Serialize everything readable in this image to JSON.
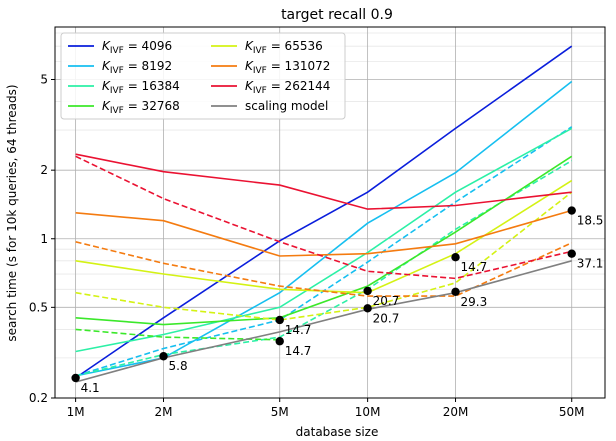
{
  "chart_data": {
    "type": "line",
    "title": "target recall 0.9",
    "xlabel": "database size",
    "ylabel": "search time (s for 10k queries, 64 threads)",
    "xscale": "log",
    "yscale": "log",
    "xlim": [
      850000,
      65000000
    ],
    "ylim": [
      0.2,
      8.5
    ],
    "grid": true,
    "legend_position": "top-left",
    "x_ticks": [
      {
        "value": 1000000,
        "label": "1M"
      },
      {
        "value": 2000000,
        "label": "2M"
      },
      {
        "value": 5000000,
        "label": "5M"
      },
      {
        "value": 10000000,
        "label": "10M"
      },
      {
        "value": 20000000,
        "label": "20M"
      },
      {
        "value": 50000000,
        "label": "50M"
      }
    ],
    "y_ticks": [
      {
        "value": 0.2,
        "label": "0.2"
      },
      {
        "value": 0.5,
        "label": "0.5"
      },
      {
        "value": 1,
        "label": "1"
      },
      {
        "value": 2,
        "label": "2"
      },
      {
        "value": 5,
        "label": "5"
      }
    ],
    "series": [
      {
        "name": "K_IVF = 4096",
        "sub": "IVF",
        "value": "= 4096",
        "color": "#0a1edc",
        "solid": [
          [
            1000000,
            0.245
          ],
          [
            2000000,
            0.45
          ],
          [
            5000000,
            0.98
          ],
          [
            10000000,
            1.6
          ],
          [
            20000000,
            3.05
          ],
          [
            50000000,
            7.0
          ]
        ],
        "dashed": []
      },
      {
        "name": "K_IVF = 8192",
        "sub": "IVF",
        "value": "= 8192",
        "color": "#16bff0",
        "solid": [
          [
            1000000,
            0.25
          ],
          [
            2000000,
            0.3
          ],
          [
            5000000,
            0.58
          ],
          [
            10000000,
            1.17
          ],
          [
            20000000,
            1.95
          ],
          [
            50000000,
            4.9
          ]
        ],
        "dashed": [
          [
            1000000,
            0.25
          ],
          [
            2000000,
            0.33
          ],
          [
            5000000,
            0.44
          ],
          [
            10000000,
            0.79
          ],
          [
            20000000,
            1.45
          ],
          [
            50000000,
            3.1
          ]
        ]
      },
      {
        "name": "K_IVF = 16384",
        "sub": "IVF",
        "value": "= 16384",
        "color": "#2cf0a6",
        "solid": [
          [
            1000000,
            0.32
          ],
          [
            2000000,
            0.38
          ],
          [
            5000000,
            0.5
          ],
          [
            10000000,
            0.87
          ],
          [
            20000000,
            1.6
          ],
          [
            50000000,
            3.05
          ]
        ],
        "dashed": [
          [
            1000000,
            0.25
          ],
          [
            2000000,
            0.31
          ],
          [
            5000000,
            0.37
          ],
          [
            10000000,
            0.6
          ],
          [
            20000000,
            1.1
          ],
          [
            50000000,
            2.2
          ]
        ]
      },
      {
        "name": "K_IVF = 32768",
        "sub": "IVF",
        "value": "= 32768",
        "color": "#3be82a",
        "solid": [
          [
            1000000,
            0.45
          ],
          [
            2000000,
            0.42
          ],
          [
            5000000,
            0.45
          ],
          [
            10000000,
            0.62
          ],
          [
            20000000,
            1.07
          ],
          [
            50000000,
            2.3
          ]
        ],
        "dashed": [
          [
            1000000,
            0.4
          ],
          [
            2000000,
            0.37
          ],
          [
            5000000,
            0.36
          ]
        ]
      },
      {
        "name": "K_IVF = 65536",
        "sub": "IVF",
        "value": "= 65536",
        "color": "#d4f214",
        "solid": [
          [
            1000000,
            0.8
          ],
          [
            2000000,
            0.7
          ],
          [
            5000000,
            0.6
          ],
          [
            10000000,
            0.58
          ],
          [
            20000000,
            0.86
          ],
          [
            50000000,
            1.8
          ]
        ],
        "dashed": [
          [
            1000000,
            0.58
          ],
          [
            2000000,
            0.5
          ],
          [
            5000000,
            0.44
          ],
          [
            10000000,
            0.5
          ],
          [
            20000000,
            0.64
          ],
          [
            50000000,
            1.6
          ]
        ]
      },
      {
        "name": "K_IVF = 131072",
        "sub": "IVF",
        "value": "= 131072",
        "color": "#f47b10",
        "solid": [
          [
            1000000,
            1.3
          ],
          [
            2000000,
            1.2
          ],
          [
            5000000,
            0.84
          ],
          [
            10000000,
            0.86
          ],
          [
            20000000,
            0.95
          ],
          [
            50000000,
            1.33
          ]
        ],
        "dashed": [
          [
            1000000,
            0.97
          ],
          [
            2000000,
            0.78
          ],
          [
            5000000,
            0.62
          ],
          [
            10000000,
            0.56
          ],
          [
            20000000,
            0.56
          ],
          [
            50000000,
            0.96
          ]
        ]
      },
      {
        "name": "K_IVF = 262144",
        "sub": "IVF",
        "value": "= 262144",
        "color": "#ea1232",
        "solid": [
          [
            1000000,
            2.35
          ],
          [
            2000000,
            1.97
          ],
          [
            5000000,
            1.72
          ],
          [
            10000000,
            1.35
          ],
          [
            20000000,
            1.4
          ],
          [
            50000000,
            1.6
          ]
        ],
        "dashed": [
          [
            1000000,
            2.3
          ],
          [
            2000000,
            1.5
          ],
          [
            5000000,
            0.97
          ],
          [
            10000000,
            0.72
          ],
          [
            20000000,
            0.67
          ],
          [
            50000000,
            0.88
          ]
        ]
      },
      {
        "name": "scaling model",
        "sub": "",
        "value": "",
        "color": "#808080",
        "solid": [
          [
            1000000,
            0.235
          ],
          [
            2000000,
            0.3
          ],
          [
            5000000,
            0.39
          ],
          [
            10000000,
            0.49
          ],
          [
            20000000,
            0.58
          ],
          [
            50000000,
            0.8
          ]
        ],
        "dashed": []
      }
    ],
    "points": [
      {
        "x": 1000000,
        "y": 0.245,
        "label": "4.1"
      },
      {
        "x": 2000000,
        "y": 0.305,
        "label": "5.8"
      },
      {
        "x": 5000000,
        "y": 0.44,
        "label": "14.7"
      },
      {
        "x": 5000000,
        "y": 0.355,
        "label": "14.7"
      },
      {
        "x": 10000000,
        "y": 0.59,
        "label": "20.7"
      },
      {
        "x": 10000000,
        "y": 0.495,
        "label": "20.7"
      },
      {
        "x": 20000000,
        "y": 0.83,
        "label": "14.7"
      },
      {
        "x": 20000000,
        "y": 0.585,
        "label": "29.3"
      },
      {
        "x": 50000000,
        "y": 1.33,
        "label": "18.5"
      },
      {
        "x": 50000000,
        "y": 0.86,
        "label": "37.1"
      }
    ]
  }
}
